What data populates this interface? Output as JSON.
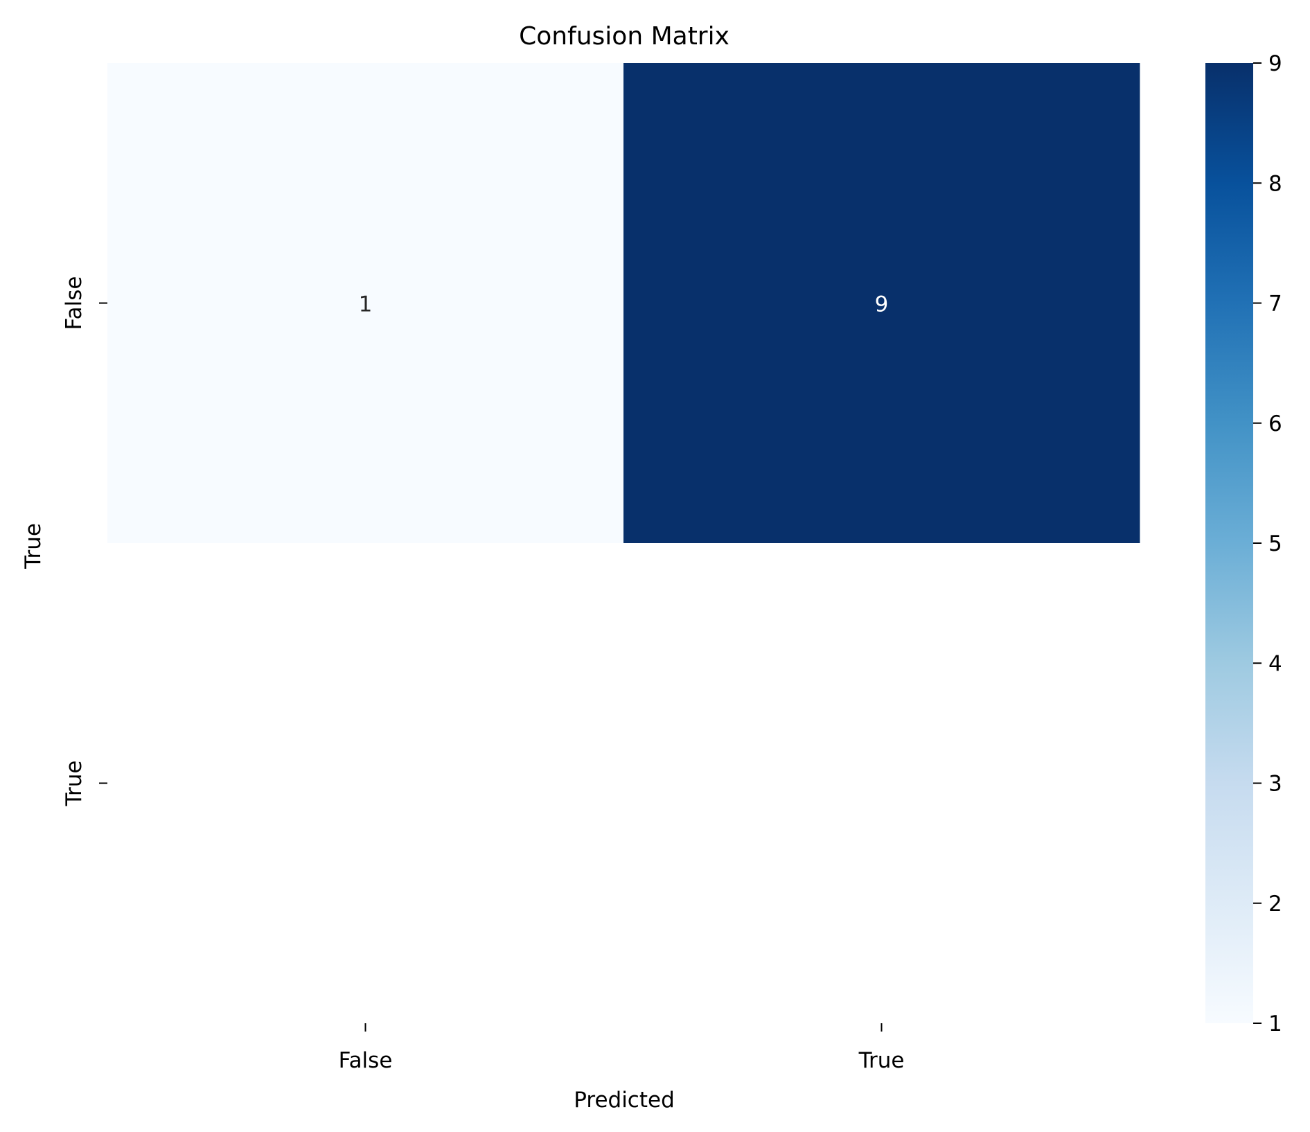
{
  "chart_data": {
    "type": "heatmap",
    "title": "Confusion Matrix",
    "xlabel": "Predicted",
    "ylabel": "True",
    "x_categories": [
      "False",
      "True"
    ],
    "y_categories": [
      "False",
      "True"
    ],
    "cells": [
      {
        "row": 0,
        "col": 0,
        "value": 1,
        "label": "1",
        "text_color": "#262626"
      },
      {
        "row": 0,
        "col": 1,
        "value": 9,
        "label": "9",
        "text_color": "#ffffff"
      },
      {
        "row": 1,
        "col": 0,
        "value": null,
        "label": ""
      },
      {
        "row": 1,
        "col": 1,
        "value": null,
        "label": ""
      }
    ],
    "empty_cell_color": "#ffffff",
    "colormap": "Blues",
    "colorbar": {
      "min": 1,
      "max": 9,
      "ticks": [
        {
          "value": 1,
          "label": "1"
        },
        {
          "value": 2,
          "label": "2"
        },
        {
          "value": 3,
          "label": "3"
        },
        {
          "value": 4,
          "label": "4"
        },
        {
          "value": 5,
          "label": "5"
        },
        {
          "value": 6,
          "label": "6"
        },
        {
          "value": 7,
          "label": "7"
        },
        {
          "value": 8,
          "label": "8"
        },
        {
          "value": 9,
          "label": "9"
        }
      ],
      "stops": [
        "#f7fbff",
        "#deebf7",
        "#c6dbef",
        "#9ecae1",
        "#6baed6",
        "#4292c6",
        "#2171b5",
        "#08519c",
        "#08306b"
      ]
    },
    "grid": false
  }
}
